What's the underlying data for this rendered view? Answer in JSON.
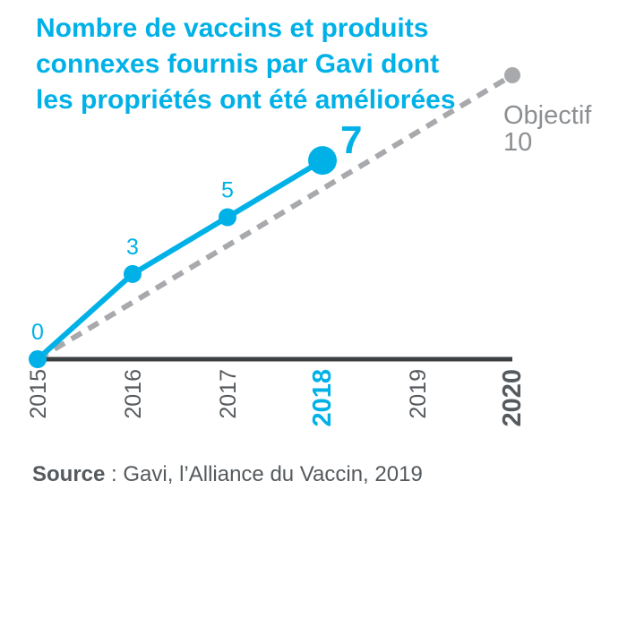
{
  "title_lines": [
    "Nombre de vaccins et produits",
    "connexes fournis par Gavi dont",
    "les propriétés ont été améliorées"
  ],
  "source": {
    "label": "Source",
    "text": " : Gavi, l’Alliance du Vaccin, 2019"
  },
  "colors": {
    "actual": "#00b1e7",
    "target": "#a7a9ac",
    "target_label": "#8c8f92",
    "axis": "#3c3f42",
    "tick": "#555a5e"
  },
  "chart_data": {
    "type": "line",
    "title": "Nombre de vaccins et produits connexes fournis par Gavi dont les propriétés ont été améliorées",
    "x": [
      2015,
      2016,
      2017,
      2018,
      2019,
      2020
    ],
    "x_tick_labels": [
      "2015",
      "2016",
      "2017",
      "2018",
      "2019",
      "2020"
    ],
    "highlight_years": [
      "2018",
      "2020"
    ],
    "ylim": [
      0,
      10
    ],
    "grid": false,
    "series": [
      {
        "name": "",
        "style": "solid",
        "points": [
          {
            "x": 2015,
            "y": 0,
            "label": "0"
          },
          {
            "x": 2016,
            "y": 3,
            "label": "3"
          },
          {
            "x": 2017,
            "y": 5,
            "label": "5"
          },
          {
            "x": 2018,
            "y": 7,
            "label": "7"
          }
        ]
      },
      {
        "name": "",
        "style": "dashed",
        "points": [
          {
            "x": 2015,
            "y": 0
          },
          {
            "x": 2020,
            "y": 10
          }
        ],
        "end_label": "Objectif",
        "end_value": "10"
      }
    ]
  }
}
